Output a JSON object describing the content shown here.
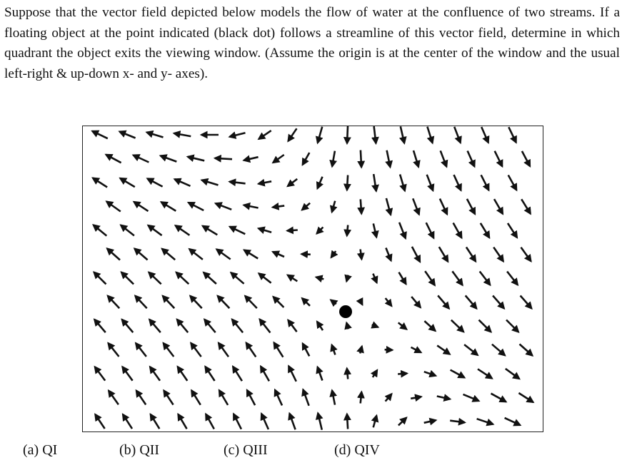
{
  "question": {
    "text": "Suppose that the vector field depicted below models the flow of water at the confluence of two streams. If a floating object at the point indicated (black dot) follows a streamline of this vector field, determine in which quadrant the object exits the viewing window. (Assume the origin is at the center of the window and the usual left-right & up-down x- and y- axes)."
  },
  "figure": {
    "description_marker": "black dot",
    "arrow_color": "#111111"
  },
  "choices": [
    {
      "label": "(a) QI"
    },
    {
      "label": "(b) QII"
    },
    {
      "label": "(c) QIII"
    },
    {
      "label": "(d) QIV"
    }
  ]
}
